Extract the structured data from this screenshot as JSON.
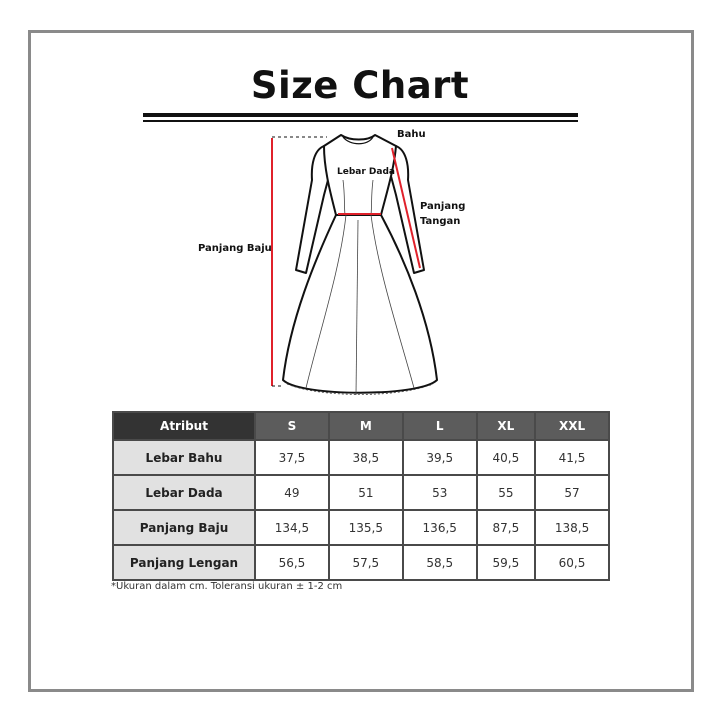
{
  "title": "Size Chart",
  "diagram": {
    "labels": {
      "shoulder": "Bahu",
      "chest": "Lebar Dada",
      "sleeve_line1": "Panjang",
      "sleeve_line2": "Tangan",
      "length": "Panjang Baju"
    },
    "colors": {
      "measure_line": "#e0212b",
      "outline": "#111111"
    }
  },
  "table": {
    "headers": [
      "Atribut",
      "S",
      "M",
      "L",
      "XL",
      "XXL"
    ],
    "rows": [
      {
        "label": "Lebar Bahu",
        "values": [
          "37,5",
          "38,5",
          "39,5",
          "40,5",
          "41,5"
        ]
      },
      {
        "label": "Lebar Dada",
        "values": [
          "49",
          "51",
          "53",
          "55",
          "57"
        ]
      },
      {
        "label": "Panjang Baju",
        "values": [
          "134,5",
          "135,5",
          "136,5",
          "87,5",
          "138,5"
        ]
      },
      {
        "label": "Panjang Lengan",
        "values": [
          "56,5",
          "57,5",
          "58,5",
          "59,5",
          "60,5"
        ]
      }
    ],
    "colors": {
      "header_first": "#333333",
      "header": "#5c5c5c",
      "first_col": "#e1e1e1"
    }
  },
  "footnote": "*Ukuran dalam cm. Toleransi ukuran ± 1-2 cm"
}
